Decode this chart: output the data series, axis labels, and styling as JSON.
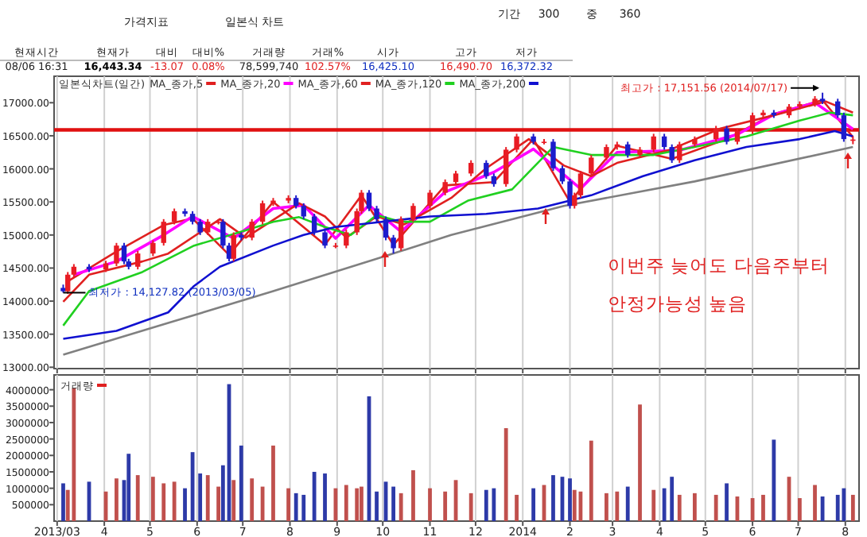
{
  "chart_data": [
    {
      "type": "other",
      "annotations": [
        "가격지표",
        "일본식 차트",
        "기간",
        "300",
        "중",
        "360",
        "현재시간",
        "현재가",
        "대비",
        "대비%",
        "거래량",
        "거래%",
        "시가",
        "고가",
        "저가",
        "08/06  16:31",
        "16,443.34",
        "-13.07",
        "0.08%",
        "78,599,740",
        "102.57%",
        "16,425.10",
        "16,490.70",
        "16,372.32"
      ]
    },
    {
      "type": "candlestick",
      "legend_title": "일본식차트(일간)",
      "legend": "top left",
      "grid": "x",
      "tick_labels": "y",
      "x": [
        "2013-03-05",
        "2013-03-08",
        "2013-03-12",
        "2013-03-22",
        "2013-04-02",
        "2013-04-09",
        "2013-04-14",
        "2013-04-17",
        "2013-04-23",
        "2013-05-03",
        "2013-05-10",
        "2013-05-17",
        "2013-05-24",
        "2013-05-29",
        "2013-06-03",
        "2013-06-08",
        "2013-06-15",
        "2013-06-18",
        "2013-06-22",
        "2013-06-25",
        "2013-06-30",
        "2013-07-07",
        "2013-07-14",
        "2013-07-21",
        "2013-07-31",
        "2013-08-05",
        "2013-08-10",
        "2013-08-17",
        "2013-08-24",
        "2013-08-31",
        "2013-09-07",
        "2013-09-14",
        "2013-09-17",
        "2013-09-22",
        "2013-09-27",
        "2013-10-03",
        "2013-10-08",
        "2013-10-13",
        "2013-10-21",
        "2013-11-01",
        "2013-11-11",
        "2013-11-18",
        "2013-11-28",
        "2013-12-08",
        "2013-12-13",
        "2013-12-21",
        "2013-12-28",
        "2014-01-08",
        "2014-01-15",
        "2014-01-21",
        "2014-01-27",
        "2014-02-01",
        "2014-02-04",
        "2014-02-08",
        "2014-02-15",
        "2014-02-25",
        "2014-03-04",
        "2014-03-11",
        "2014-03-19",
        "2014-03-28",
        "2014-04-04",
        "2014-04-09",
        "2014-04-14",
        "2014-04-24",
        "2014-05-08",
        "2014-05-15",
        "2014-05-22",
        "2014-06-01",
        "2014-06-08",
        "2014-06-15",
        "2014-06-25",
        "2014-07-02",
        "2014-07-12",
        "2014-07-17",
        "2014-07-27",
        "2014-07-31",
        "2014-08-06"
      ],
      "ohlc": [
        [
          14200,
          14250,
          14127.82,
          14150
        ],
        [
          14150,
          14440,
          14110,
          14400
        ],
        [
          14400,
          14560,
          14360,
          14520
        ],
        [
          14520,
          14560,
          14440,
          14480
        ],
        [
          14480,
          14610,
          14440,
          14570
        ],
        [
          14570,
          14880,
          14530,
          14840
        ],
        [
          14840,
          14880,
          14560,
          14600
        ],
        [
          14600,
          14640,
          14480,
          14520
        ],
        [
          14520,
          14760,
          14480,
          14720
        ],
        [
          14720,
          14920,
          14680,
          14880
        ],
        [
          14880,
          15240,
          14840,
          15200
        ],
        [
          15200,
          15400,
          15160,
          15360
        ],
        [
          15360,
          15400,
          15280,
          15320
        ],
        [
          15320,
          15360,
          15160,
          15200
        ],
        [
          15200,
          15240,
          15000,
          15040
        ],
        [
          15040,
          15240,
          15000,
          15200
        ],
        [
          15200,
          15240,
          15160,
          15200
        ],
        [
          15200,
          15240,
          14800,
          14840
        ],
        [
          14840,
          14880,
          14600,
          14640
        ],
        [
          14640,
          15040,
          14600,
          15000
        ],
        [
          15000,
          15040,
          14920,
          14960
        ],
        [
          14960,
          15240,
          14920,
          15200
        ],
        [
          15200,
          15520,
          15160,
          15480
        ],
        [
          15480,
          15560,
          15440,
          15520
        ],
        [
          15520,
          15600,
          15480,
          15560
        ],
        [
          15560,
          15600,
          15400,
          15440
        ],
        [
          15440,
          15480,
          15240,
          15280
        ],
        [
          15280,
          15320,
          15000,
          15040
        ],
        [
          15040,
          15080,
          14800,
          14840
        ],
        [
          14840,
          14880,
          14800,
          14840
        ],
        [
          14840,
          15080,
          14800,
          15040
        ],
        [
          15040,
          15400,
          15000,
          15360
        ],
        [
          15360,
          15680,
          15320,
          15640
        ],
        [
          15640,
          15680,
          15360,
          15400
        ],
        [
          15400,
          15440,
          15200,
          15240
        ],
        [
          15240,
          15280,
          14920,
          14960
        ],
        [
          14960,
          15000,
          14720,
          14800
        ],
        [
          14800,
          15280,
          14760,
          15240
        ],
        [
          15240,
          15480,
          15200,
          15440
        ],
        [
          15440,
          15680,
          15400,
          15640
        ],
        [
          15640,
          15840,
          15600,
          15800
        ],
        [
          15800,
          15970,
          15760,
          15930
        ],
        [
          15930,
          16130,
          15890,
          16090
        ],
        [
          16090,
          16130,
          15850,
          15890
        ],
        [
          15890,
          15930,
          15730,
          15770
        ],
        [
          15770,
          16330,
          15730,
          16290
        ],
        [
          16290,
          16530,
          16250,
          16490
        ],
        [
          16490,
          16530,
          16370,
          16410
        ],
        [
          16410,
          16450,
          16370,
          16410
        ],
        [
          16410,
          16450,
          15970,
          16010
        ],
        [
          16010,
          16050,
          15770,
          15810
        ],
        [
          15810,
          15850,
          15400,
          15440
        ],
        [
          15440,
          15640,
          15400,
          15600
        ],
        [
          15600,
          15970,
          15560,
          15930
        ],
        [
          15930,
          16210,
          15890,
          16170
        ],
        [
          16170,
          16370,
          16130,
          16330
        ],
        [
          16330,
          16410,
          16290,
          16370
        ],
        [
          16370,
          16410,
          16170,
          16210
        ],
        [
          16210,
          16330,
          16170,
          16290
        ],
        [
          16290,
          16530,
          16250,
          16490
        ],
        [
          16490,
          16530,
          16290,
          16330
        ],
        [
          16330,
          16370,
          16090,
          16130
        ],
        [
          16130,
          16410,
          16090,
          16370
        ],
        [
          16370,
          16490,
          16330,
          16450
        ],
        [
          16450,
          16650,
          16410,
          16610
        ],
        [
          16610,
          16650,
          16370,
          16410
        ],
        [
          16410,
          16610,
          16370,
          16570
        ],
        [
          16570,
          16850,
          16530,
          16810
        ],
        [
          16810,
          16890,
          16770,
          16850
        ],
        [
          16850,
          16890,
          16770,
          16810
        ],
        [
          16810,
          16980,
          16770,
          16940
        ],
        [
          16940,
          17020,
          16900,
          16980
        ],
        [
          16980,
          17100,
          16940,
          17060
        ],
        [
          17060,
          17151.56,
          16980,
          17020
        ],
        [
          17020,
          17060,
          16770,
          16810
        ],
        [
          16810,
          16850,
          16410,
          16450
        ],
        [
          16425.1,
          16490.7,
          16372.32,
          16443.34
        ]
      ],
      "series": [
        {
          "name": "MA_종가,5",
          "type": "line",
          "color": "#e02020",
          "x": [
            "2013-03-08",
            "2013-04-09",
            "2013-05-10",
            "2013-05-29",
            "2013-06-22",
            "2013-07-21",
            "2013-08-24",
            "2013-09-17",
            "2013-10-08",
            "2013-11-11",
            "2013-12-13",
            "2014-01-08",
            "2014-02-01",
            "2014-03-04",
            "2014-04-09",
            "2014-05-15",
            "2014-06-15",
            "2014-07-17",
            "2014-08-06"
          ],
          "values": [
            14300,
            14750,
            15150,
            15250,
            14700,
            15500,
            14850,
            15600,
            14850,
            15750,
            15800,
            16450,
            15500,
            16350,
            16150,
            16450,
            16830,
            17040,
            16480
          ]
        },
        {
          "name": "MA_종가,20",
          "type": "line",
          "color": "#ff00ff",
          "x": [
            "2013-03-12",
            "2013-04-09",
            "2013-05-10",
            "2013-05-29",
            "2013-06-25",
            "2013-07-21",
            "2013-08-10",
            "2013-08-31",
            "2013-09-22",
            "2013-10-13",
            "2013-11-11",
            "2013-12-13",
            "2014-01-08",
            "2014-02-08",
            "2014-03-04",
            "2014-04-14",
            "2014-05-22",
            "2014-06-15",
            "2014-07-12",
            "2014-08-06"
          ],
          "values": [
            14400,
            14600,
            15000,
            15280,
            14950,
            15400,
            15450,
            14950,
            15450,
            15050,
            15650,
            15950,
            16300,
            15700,
            16250,
            16280,
            16520,
            16820,
            17000,
            16600
          ]
        },
        {
          "name": "MA_종가,60",
          "type": "line",
          "color": "#e02020",
          "x": [
            "2013-03-05",
            "2013-03-22",
            "2013-04-26",
            "2013-05-13",
            "2013-06-16",
            "2013-07-03",
            "2013-08-07",
            "2013-08-24",
            "2013-09-07",
            "2013-09-27",
            "2013-10-15",
            "2013-11-15",
            "2013-12-08",
            "2014-01-05",
            "2014-01-28",
            "2014-02-15",
            "2014-03-04",
            "2014-04-08",
            "2014-05-11",
            "2014-06-15",
            "2014-07-19",
            "2014-08-06"
          ],
          "values": [
            13990,
            14400,
            14600,
            14720,
            15240,
            14960,
            15480,
            15280,
            14960,
            15280,
            15160,
            15560,
            16010,
            16450,
            16050,
            15890,
            16090,
            16290,
            16610,
            16810,
            17020,
            16850
          ]
        },
        {
          "name": "MA_종가,120",
          "type": "line",
          "color": "#20d020",
          "x": [
            "2013-03-05",
            "2013-03-22",
            "2013-04-26",
            "2013-05-30",
            "2013-06-23",
            "2013-07-21",
            "2013-08-07",
            "2013-08-24",
            "2013-09-10",
            "2013-09-27",
            "2013-10-13",
            "2013-11-01",
            "2013-11-26",
            "2013-12-25",
            "2014-01-21",
            "2014-02-15",
            "2014-03-28",
            "2014-04-24",
            "2014-05-28",
            "2014-07-02",
            "2014-07-22",
            "2014-08-06"
          ],
          "values": [
            13630,
            14150,
            14440,
            14840,
            15000,
            15200,
            15270,
            15120,
            15000,
            15300,
            15200,
            15200,
            15520,
            15690,
            16330,
            16210,
            16210,
            16330,
            16490,
            16730,
            16850,
            16810
          ]
        },
        {
          "name": "MA_종가,200",
          "type": "line",
          "color": "#1010d0",
          "x": [
            "2013-03-05",
            "2013-04-09",
            "2013-05-13",
            "2013-05-30",
            "2013-06-16",
            "2013-07-21",
            "2013-08-10",
            "2013-08-31",
            "2013-09-27",
            "2013-11-01",
            "2013-12-08",
            "2014-01-11",
            "2014-02-15",
            "2014-03-21",
            "2014-04-24",
            "2014-05-28",
            "2014-07-02",
            "2014-07-25",
            "2014-08-06"
          ],
          "values": [
            13430,
            13550,
            13830,
            14230,
            14520,
            14840,
            15000,
            15120,
            15190,
            15280,
            15320,
            15400,
            15600,
            15890,
            16130,
            16330,
            16450,
            16570,
            16490
          ]
        },
        {
          "type": "line",
          "color": "#808080",
          "x": [
            "2013-03-05",
            "2013-05-13",
            "2013-07-21",
            "2013-09-27",
            "2013-11-15",
            "2014-01-28",
            "2014-04-24",
            "2014-08-06"
          ],
          "values": [
            13190,
            13670,
            14150,
            14640,
            15000,
            15440,
            15810,
            16330
          ]
        }
      ],
      "ref_lines": [
        {
          "axis": "y",
          "value": 16590,
          "color": "#e01010"
        }
      ],
      "annotations": [
        {
          "text": "최고가 : 17,151.56 (2014/07/17)",
          "x": "2014-07-17",
          "y": 17151.56
        },
        {
          "text": "최저가 : 14,127.82 (2013/03/05)",
          "x": "2013-03-05",
          "y": 14127.82
        },
        "이번주 늦어도 다음주부터",
        "안정가능성 높음"
      ],
      "xlim": [
        "2013-02-27",
        "2014-08-10"
      ],
      "ylim": [
        12980,
        17400
      ],
      "xticks": [
        "2013-03-01",
        "2013-04-01",
        "2013-05-01",
        "2013-06-01",
        "2013-07-01",
        "2013-08-01",
        "2013-09-01",
        "2013-10-01",
        "2013-11-01",
        "2013-12-01",
        "2014-01-01",
        "2014-02-01",
        "2014-03-01",
        "2014-04-01",
        "2014-05-01",
        "2014-06-01",
        "2014-07-01",
        "2014-08-01"
      ],
      "yticks": [
        {
          "value": 13000,
          "label": "13000.00"
        },
        {
          "value": 13500,
          "label": "13500.00"
        },
        {
          "value": 14000,
          "label": "14000.00"
        },
        {
          "value": 14500,
          "label": "14500.00"
        },
        {
          "value": 15000,
          "label": "15000.00"
        },
        {
          "value": 15500,
          "label": "15500.00"
        },
        {
          "value": 16000,
          "label": "16000.00"
        },
        {
          "value": 16500,
          "label": "16500.00"
        },
        {
          "value": 17000,
          "label": "17000.00"
        }
      ]
    },
    {
      "type": "bar",
      "legend": "top left",
      "grid": "x",
      "x": [
        "2013-03-05",
        "2013-03-08",
        "2013-03-12",
        "2013-03-22",
        "2013-04-02",
        "2013-04-09",
        "2013-04-14",
        "2013-04-17",
        "2013-04-23",
        "2013-05-03",
        "2013-05-10",
        "2013-05-17",
        "2013-05-24",
        "2013-05-29",
        "2013-06-03",
        "2013-06-08",
        "2013-06-15",
        "2013-06-18",
        "2013-06-22",
        "2013-06-25",
        "2013-06-30",
        "2013-07-07",
        "2013-07-14",
        "2013-07-21",
        "2013-07-31",
        "2013-08-05",
        "2013-08-10",
        "2013-08-17",
        "2013-08-24",
        "2013-08-31",
        "2013-09-07",
        "2013-09-14",
        "2013-09-17",
        "2013-09-22",
        "2013-09-27",
        "2013-10-03",
        "2013-10-08",
        "2013-10-13",
        "2013-10-21",
        "2013-11-01",
        "2013-11-11",
        "2013-11-18",
        "2013-11-28",
        "2013-12-08",
        "2013-12-13",
        "2013-12-21",
        "2013-12-28",
        "2014-01-08",
        "2014-01-15",
        "2014-01-21",
        "2014-01-27",
        "2014-02-01",
        "2014-02-04",
        "2014-02-08",
        "2014-02-15",
        "2014-02-25",
        "2014-03-04",
        "2014-03-11",
        "2014-03-19",
        "2014-03-28",
        "2014-04-04",
        "2014-04-09",
        "2014-04-14",
        "2014-04-24",
        "2014-05-08",
        "2014-05-15",
        "2014-05-22",
        "2014-06-01",
        "2014-06-08",
        "2014-06-15",
        "2014-06-25",
        "2014-07-02",
        "2014-07-12",
        "2014-07-17",
        "2014-07-27",
        "2014-07-31",
        "2014-08-06"
      ],
      "series": [
        {
          "name": "거래량",
          "color": "#e02020",
          "values": [
            1150000,
            950000,
            4050000,
            1200000,
            900000,
            1300000,
            1250000,
            2050000,
            1400000,
            1350000,
            1150000,
            1200000,
            1000000,
            2100000,
            1450000,
            1400000,
            1050000,
            1700000,
            4170000,
            1250000,
            2300000,
            1300000,
            1050000,
            2300000,
            1000000,
            850000,
            800000,
            1500000,
            1450000,
            1000000,
            1100000,
            1000000,
            1050000,
            3800000,
            900000,
            1200000,
            1050000,
            850000,
            1550000,
            1000000,
            900000,
            1250000,
            850000,
            950000,
            1000000,
            2830000,
            800000,
            1000000,
            1100000,
            1400000,
            1350000,
            1300000,
            950000,
            900000,
            2450000,
            850000,
            900000,
            1050000,
            3550000,
            950000,
            1000000,
            1350000,
            800000,
            850000,
            800000,
            1150000,
            750000,
            700000,
            800000,
            2480000,
            1350000,
            700000,
            1100000,
            750000,
            800000,
            1000000,
            800000
          ],
          "colors": [
            "#2d3aa8",
            "#c0504d",
            "#c0504d",
            "#2d3aa8",
            "#c0504d",
            "#c0504d",
            "#2d3aa8",
            "#2d3aa8",
            "#c0504d",
            "#c0504d",
            "#c0504d",
            "#c0504d",
            "#2d3aa8",
            "#2d3aa8",
            "#2d3aa8",
            "#c0504d",
            "#c0504d",
            "#2d3aa8",
            "#2d3aa8",
            "#c0504d",
            "#2d3aa8",
            "#c0504d",
            "#c0504d",
            "#c0504d",
            "#c0504d",
            "#2d3aa8",
            "#2d3aa8",
            "#2d3aa8",
            "#2d3aa8",
            "#c0504d",
            "#c0504d",
            "#c0504d",
            "#c0504d",
            "#2d3aa8",
            "#2d3aa8",
            "#2d3aa8",
            "#2d3aa8",
            "#c0504d",
            "#c0504d",
            "#c0504d",
            "#c0504d",
            "#c0504d",
            "#c0504d",
            "#2d3aa8",
            "#2d3aa8",
            "#c0504d",
            "#c0504d",
            "#2d3aa8",
            "#c0504d",
            "#2d3aa8",
            "#2d3aa8",
            "#2d3aa8",
            "#c0504d",
            "#c0504d",
            "#c0504d",
            "#c0504d",
            "#c0504d",
            "#2d3aa8",
            "#c0504d",
            "#c0504d",
            "#2d3aa8",
            "#2d3aa8",
            "#c0504d",
            "#c0504d",
            "#c0504d",
            "#2d3aa8",
            "#c0504d",
            "#c0504d",
            "#c0504d",
            "#2d3aa8",
            "#c0504d",
            "#c0504d",
            "#c0504d",
            "#2d3aa8",
            "#2d3aa8",
            "#2d3aa8",
            "#c0504d"
          ]
        }
      ],
      "xlim": [
        "2013-02-27",
        "2014-08-10"
      ],
      "ylim": [
        0,
        4450000
      ],
      "xticks": [
        {
          "value": "2013-03-01",
          "label": "2013/03"
        },
        {
          "value": "2013-04-01",
          "label": "4"
        },
        {
          "value": "2013-05-01",
          "label": "5"
        },
        {
          "value": "2013-06-01",
          "label": "6"
        },
        {
          "value": "2013-07-01",
          "label": "7"
        },
        {
          "value": "2013-08-01",
          "label": "8"
        },
        {
          "value": "2013-09-01",
          "label": "9"
        },
        {
          "value": "2013-10-01",
          "label": "10"
        },
        {
          "value": "2013-11-01",
          "label": "11"
        },
        {
          "value": "2013-12-01",
          "label": "12"
        },
        {
          "value": "2014-01-01",
          "label": "2014"
        },
        {
          "value": "2014-02-01",
          "label": "2"
        },
        {
          "value": "2014-03-01",
          "label": "3"
        },
        {
          "value": "2014-04-01",
          "label": "4"
        },
        {
          "value": "2014-05-01",
          "label": "5"
        },
        {
          "value": "2014-06-01",
          "label": "6"
        },
        {
          "value": "2014-07-01",
          "label": "7"
        },
        {
          "value": "2014-08-01",
          "label": "8"
        }
      ],
      "yticks": [
        500000,
        1000000,
        1500000,
        2000000,
        2500000,
        3000000,
        3500000,
        4000000
      ]
    }
  ]
}
